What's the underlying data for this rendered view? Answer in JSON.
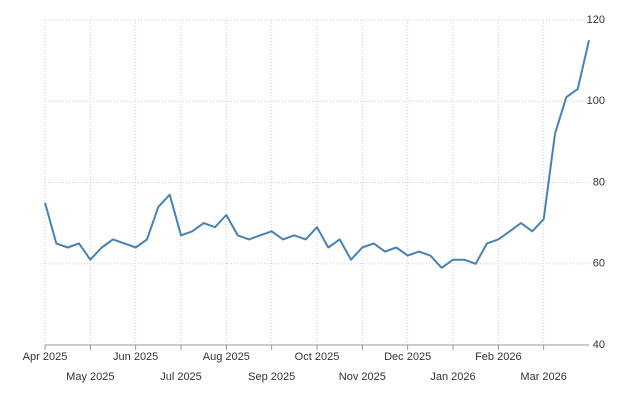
{
  "chart_data": {
    "type": "line",
    "categories": [
      "Apr 2025",
      null,
      null,
      null,
      "May 2025",
      null,
      null,
      null,
      "Jun 2025",
      null,
      null,
      null,
      "Jul 2025",
      null,
      null,
      null,
      "Aug 2025",
      null,
      null,
      null,
      "Sep 2025",
      null,
      null,
      null,
      "Oct 2025",
      null,
      null,
      null,
      "Nov 2025",
      null,
      null,
      null,
      "Dec 2025",
      null,
      null,
      null,
      "Jan 2026",
      null,
      null,
      null,
      "Feb 2026",
      null,
      null,
      null,
      "Mar 2026",
      null,
      null,
      null,
      null
    ],
    "series": [
      {
        "color": "#4682b4",
        "values": [
          75,
          65,
          64,
          65,
          61,
          64,
          66,
          65,
          64,
          66,
          74,
          77,
          67,
          68,
          70,
          69,
          72,
          67,
          66,
          67,
          68,
          66,
          67,
          66,
          69,
          64,
          66,
          61,
          64,
          65,
          63,
          64,
          62,
          63,
          62,
          59,
          61,
          61,
          60,
          65,
          66,
          68,
          70,
          68,
          71,
          92,
          101,
          103,
          115
        ]
      }
    ],
    "ylim": [
      40,
      120
    ],
    "yticks": [
      40,
      60,
      80,
      100,
      120
    ],
    "grid": true
  }
}
